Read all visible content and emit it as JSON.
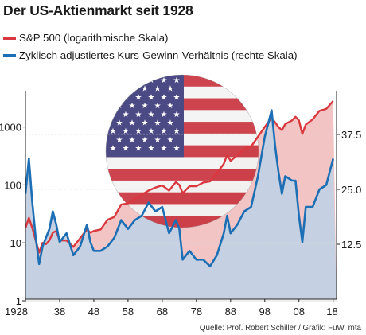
{
  "title": "Der US-Aktienmarkt seit 1928",
  "source": "Quelle: Prof. Robert Schiller / Grafik: FuW, mta",
  "colors": {
    "sp500": "#d9383f",
    "cape": "#1c6fb4",
    "red_fill": "#f3c4c4",
    "blue_fill": "#c5d1e2",
    "grid": "#d5d5d5"
  },
  "chart_data": {
    "type": "line",
    "x_ticks": [
      1928,
      1938,
      1948,
      1958,
      1968,
      1978,
      1988,
      1998,
      2008,
      2018
    ],
    "x_tick_labels": [
      "1928",
      "38",
      "48",
      "58",
      "68",
      "78",
      "88",
      "98",
      "08",
      "18"
    ],
    "xlim": [
      1928,
      2019
    ],
    "left_axis": {
      "scale": "log",
      "ticks": [
        1,
        10,
        100,
        1000
      ],
      "tick_labels": [
        "1",
        "10",
        "100",
        "1000"
      ],
      "ylim": [
        1,
        3000
      ]
    },
    "right_axis": {
      "scale": "linear",
      "ticks": [
        12.5,
        25.0,
        37.5
      ],
      "tick_labels": [
        "12.5",
        "25.0",
        "37.5"
      ],
      "ylim": [
        0,
        43
      ]
    },
    "series": [
      {
        "name": "S&P 500 (logarithmische Skala)",
        "axis": "left",
        "x": [
          1928,
          1929,
          1930,
          1931,
          1932,
          1933,
          1934,
          1935,
          1936,
          1937,
          1938,
          1940,
          1942,
          1944,
          1946,
          1947,
          1948,
          1950,
          1952,
          1954,
          1956,
          1958,
          1960,
          1962,
          1964,
          1966,
          1968,
          1970,
          1972,
          1973,
          1974,
          1976,
          1978,
          1980,
          1982,
          1984,
          1986,
          1987,
          1988,
          1990,
          1992,
          1994,
          1996,
          1998,
          2000,
          2001,
          2002,
          2003,
          2004,
          2006,
          2007,
          2008,
          2009,
          2010,
          2012,
          2014,
          2016,
          2018
        ],
        "values": [
          18,
          27,
          18,
          11,
          6.8,
          10,
          9.5,
          11,
          15,
          16,
          11,
          11,
          8.5,
          12,
          17,
          15,
          16,
          17,
          25,
          28,
          46,
          48,
          58,
          68,
          80,
          90,
          98,
          80,
          112,
          100,
          72,
          95,
          95,
          110,
          115,
          160,
          230,
          330,
          260,
          330,
          420,
          460,
          680,
          1000,
          1450,
          1200,
          1000,
          880,
          1120,
          1300,
          1500,
          1300,
          760,
          1100,
          1350,
          1900,
          2050,
          2800
        ]
      },
      {
        "name": "Zyklisch adjustiertes Kurs-Gewinn-Verhältnis (rechte Skala)",
        "axis": "right",
        "x": [
          1928,
          1929,
          1930,
          1931,
          1932,
          1933,
          1934,
          1935,
          1936,
          1937,
          1938,
          1940,
          1942,
          1944,
          1946,
          1947,
          1948,
          1950,
          1952,
          1954,
          1956,
          1958,
          1960,
          1962,
          1964,
          1966,
          1968,
          1970,
          1972,
          1973,
          1974,
          1976,
          1978,
          1980,
          1982,
          1984,
          1986,
          1987,
          1988,
          1990,
          1992,
          1994,
          1996,
          1998,
          2000,
          2001,
          2002,
          2003,
          2004,
          2006,
          2007,
          2008,
          2009,
          2010,
          2012,
          2014,
          2016,
          2018
        ],
        "values": [
          24,
          32,
          22,
          14,
          8,
          12,
          14,
          16,
          20,
          17,
          13,
          15,
          10,
          12,
          17,
          13,
          11,
          11,
          12,
          14,
          18,
          16,
          18,
          19,
          22,
          20,
          21,
          15,
          18,
          16,
          9,
          11,
          9,
          9,
          7.5,
          10,
          15,
          19,
          15,
          17,
          20,
          21,
          28,
          37,
          43,
          35,
          29,
          24,
          28,
          27,
          27,
          19,
          13,
          21,
          21,
          25,
          26,
          32
        ]
      }
    ]
  }
}
